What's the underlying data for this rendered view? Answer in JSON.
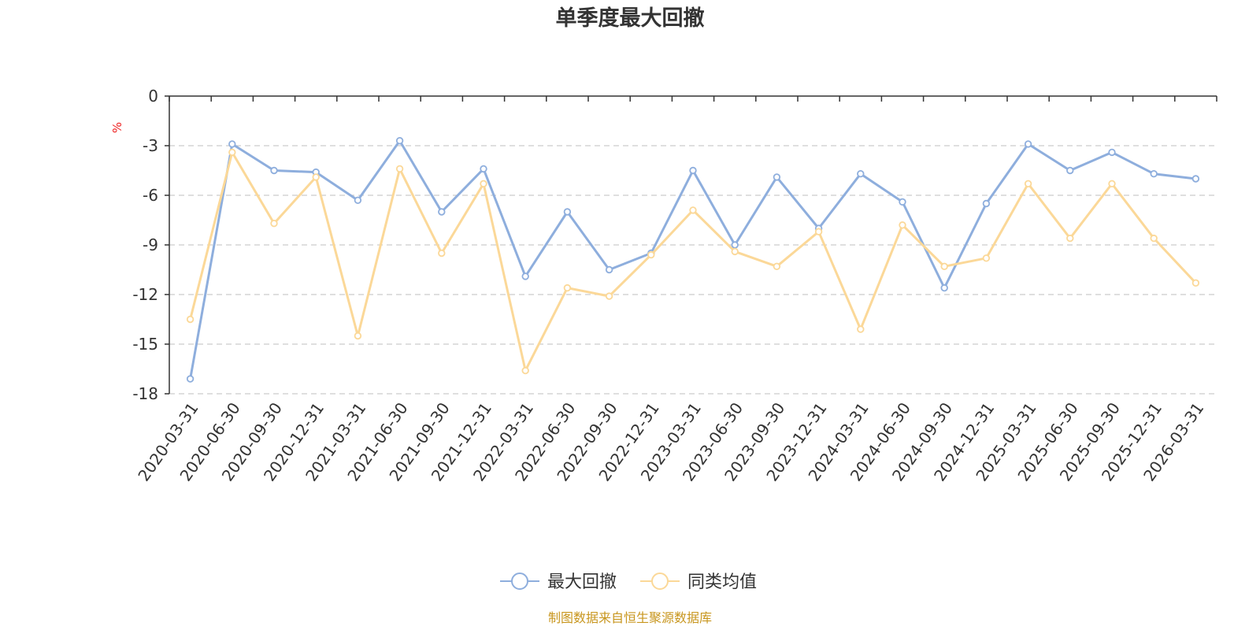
{
  "chart_data": {
    "type": "line",
    "title": "单季度最大回撤",
    "ylabel": "%",
    "xlabel": "",
    "ylim": [
      -18,
      0
    ],
    "yticks": [
      0,
      -3,
      -6,
      -9,
      -12,
      -15,
      -18
    ],
    "categories": [
      "2020-03-31",
      "2020-06-30",
      "2020-09-30",
      "2020-12-31",
      "2021-03-31",
      "2021-06-30",
      "2021-09-30",
      "2021-12-31",
      "2022-03-31",
      "2022-06-30",
      "2022-09-30",
      "2022-12-31",
      "2023-03-31",
      "2023-06-30",
      "2023-09-30",
      "2023-12-31",
      "2024-03-31",
      "2024-06-30",
      "2024-09-30",
      "2024-12-31",
      "2025-03-31",
      "2025-06-30",
      "2025-09-30",
      "2025-12-31",
      "2026-03-31"
    ],
    "series": [
      {
        "name": "最大回撤",
        "color": "#8eaedd",
        "values": [
          -17.1,
          -2.9,
          -4.5,
          -4.6,
          -6.3,
          -2.7,
          -7.0,
          -4.4,
          -10.9,
          -7.0,
          -10.5,
          -9.5,
          -4.5,
          -9.0,
          -4.9,
          -8.0,
          -4.7,
          -6.4,
          -11.6,
          -6.5,
          -2.9,
          -4.5,
          -3.4,
          -4.7,
          -5.0
        ]
      },
      {
        "name": "同类均值",
        "color": "#fbd898",
        "values": [
          -13.5,
          -3.4,
          -7.7,
          -4.9,
          -14.5,
          -4.4,
          -9.5,
          -5.3,
          -16.6,
          -11.6,
          -12.1,
          -9.6,
          -6.9,
          -9.4,
          -10.3,
          -8.2,
          -14.1,
          -7.8,
          -10.3,
          -9.8,
          -5.3,
          -8.6,
          -5.3,
          -8.6,
          -11.3
        ]
      }
    ],
    "grid": true,
    "legend_position": "bottom-center"
  },
  "footer": {
    "source": "制图数据来自恒生聚源数据库"
  }
}
